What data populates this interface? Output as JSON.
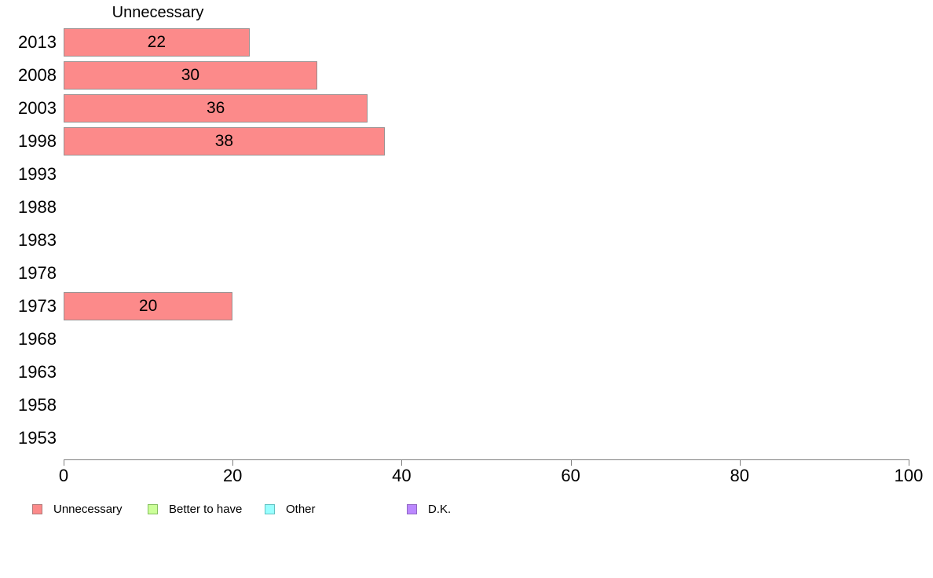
{
  "chart_data": {
    "type": "bar",
    "orientation": "horizontal",
    "title": "Unnecessary",
    "categories": [
      "2013",
      "2008",
      "2003",
      "1998",
      "1993",
      "1988",
      "1983",
      "1978",
      "1973",
      "1968",
      "1963",
      "1958",
      "1953"
    ],
    "series": [
      {
        "name": "Unnecessary",
        "color": "#fc8a8a",
        "border_color": "#9a8f8f",
        "values": [
          22,
          30,
          36,
          38,
          null,
          null,
          null,
          null,
          20,
          null,
          null,
          null,
          null
        ]
      }
    ],
    "value_labels_shown": true,
    "xlabel": "",
    "ylabel": "",
    "xlim": [
      0,
      100
    ],
    "x_ticks": [
      0,
      20,
      40,
      60,
      80,
      100
    ],
    "grid": false,
    "legend_position": "bottom",
    "legend": [
      {
        "label": "Unnecessary",
        "color": "#fc8a8a",
        "border_color": "#b07a7a"
      },
      {
        "label": "Better to have",
        "color": "#ccff99",
        "border_color": "#86c060"
      },
      {
        "label": "Other",
        "color": "#99ffff",
        "border_color": "#62c2c2"
      },
      {
        "label": "D.K.",
        "color": "#bb88ff",
        "border_color": "#9168c4"
      }
    ]
  }
}
